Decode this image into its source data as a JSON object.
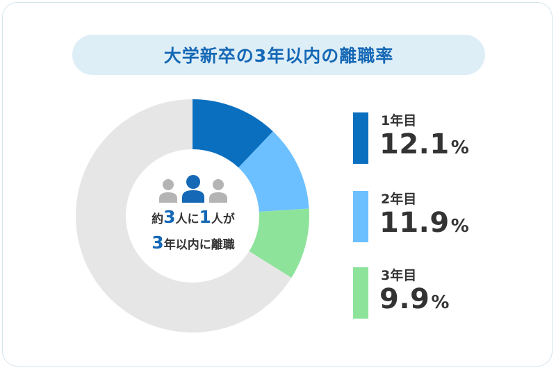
{
  "title": "大学新卒の3年以内の離職率",
  "center": {
    "line1": [
      "約",
      "3",
      "人に",
      "1",
      "人が"
    ],
    "line2": [
      "3",
      "年以内に離職"
    ]
  },
  "chart_data": {
    "type": "pie",
    "style": "donut",
    "title": "大学新卒の3年以内の離職率",
    "unit": "%",
    "slices": [
      {
        "label": "1年目",
        "value": 12.1,
        "display": "12.1",
        "color": "#0b6fbf"
      },
      {
        "label": "2年目",
        "value": 11.9,
        "display": "11.9",
        "color": "#6cc0ff"
      },
      {
        "label": "3年目",
        "value": 9.9,
        "display": "9.9",
        "color": "#8ee39b"
      }
    ],
    "remainder_color": "#e6e6e6",
    "legend_position": "right"
  },
  "colors": {
    "title_text": "#1568b5",
    "title_bg": "#deeef7",
    "accent_number": "#1568b5",
    "person_icon_main": "#1568b5",
    "person_icon_other": "#b4b4b4"
  },
  "icons": [
    "person-icon",
    "person-icon",
    "person-icon"
  ]
}
